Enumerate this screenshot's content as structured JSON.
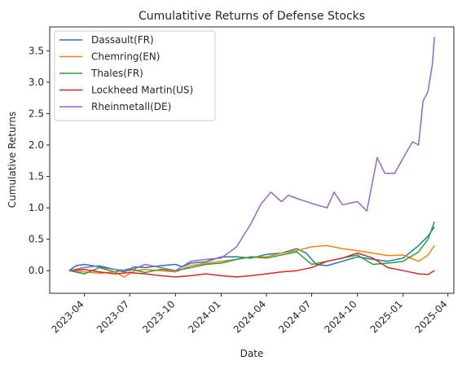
{
  "chart_data": {
    "type": "line",
    "title": "Cumulatitive Returns of Defense Stocks",
    "xlabel": "Date",
    "ylabel": "Cumulative Returns",
    "xlim": [
      "2023-01-21",
      "2025-04-13"
    ],
    "ylim": [
      -0.36,
      3.88
    ],
    "x_ticks": [
      "2023-04",
      "2023-07",
      "2023-10",
      "2024-01",
      "2024-04",
      "2024-07",
      "2024-10",
      "2025-01",
      "2025-04"
    ],
    "y_ticks": [
      "0.0",
      "0.5",
      "1.0",
      "1.5",
      "2.0",
      "2.5",
      "3.0",
      "3.5"
    ],
    "legend_position": "upper-left",
    "grid": false,
    "series": [
      {
        "name": "Dassault(FR)",
        "color": "#1f77b4",
        "points": [
          [
            "2023-03-01",
            0.0
          ],
          [
            "2023-03-15",
            0.08
          ],
          [
            "2023-04-01",
            0.1
          ],
          [
            "2023-05-01",
            0.06
          ],
          [
            "2023-06-01",
            0.02
          ],
          [
            "2023-06-20",
            -0.02
          ],
          [
            "2023-07-10",
            0.06
          ],
          [
            "2023-08-01",
            0.05
          ],
          [
            "2023-09-01",
            0.08
          ],
          [
            "2023-10-01",
            0.1
          ],
          [
            "2023-10-15",
            0.06
          ],
          [
            "2023-11-01",
            0.12
          ],
          [
            "2023-12-01",
            0.14
          ],
          [
            "2024-01-01",
            0.22
          ],
          [
            "2024-02-01",
            0.22
          ],
          [
            "2024-03-01",
            0.2
          ],
          [
            "2024-04-01",
            0.26
          ],
          [
            "2024-05-01",
            0.28
          ],
          [
            "2024-06-01",
            0.35
          ],
          [
            "2024-06-20",
            0.28
          ],
          [
            "2024-07-10",
            0.1
          ],
          [
            "2024-08-01",
            0.08
          ],
          [
            "2024-09-01",
            0.15
          ],
          [
            "2024-10-01",
            0.22
          ],
          [
            "2024-11-01",
            0.18
          ],
          [
            "2024-12-01",
            0.15
          ],
          [
            "2025-01-01",
            0.2
          ],
          [
            "2025-02-01",
            0.4
          ],
          [
            "2025-02-20",
            0.55
          ],
          [
            "2025-03-05",
            0.7
          ]
        ]
      },
      {
        "name": "Chemring(EN)",
        "color": "#ff7f0e",
        "points": [
          [
            "2023-03-01",
            0.0
          ],
          [
            "2023-04-01",
            -0.02
          ],
          [
            "2023-05-01",
            -0.04
          ],
          [
            "2023-06-01",
            -0.02
          ],
          [
            "2023-06-20",
            -0.1
          ],
          [
            "2023-07-10",
            0.0
          ],
          [
            "2023-08-01",
            0.02
          ],
          [
            "2023-09-01",
            0.0
          ],
          [
            "2023-10-01",
            -0.02
          ],
          [
            "2023-11-01",
            0.08
          ],
          [
            "2023-12-01",
            0.12
          ],
          [
            "2024-01-01",
            0.15
          ],
          [
            "2024-02-01",
            0.18
          ],
          [
            "2024-03-01",
            0.22
          ],
          [
            "2024-04-01",
            0.22
          ],
          [
            "2024-05-01",
            0.28
          ],
          [
            "2024-06-01",
            0.32
          ],
          [
            "2024-07-01",
            0.38
          ],
          [
            "2024-08-01",
            0.4
          ],
          [
            "2024-09-01",
            0.35
          ],
          [
            "2024-10-01",
            0.32
          ],
          [
            "2024-11-01",
            0.28
          ],
          [
            "2024-12-01",
            0.24
          ],
          [
            "2025-01-01",
            0.25
          ],
          [
            "2025-02-01",
            0.15
          ],
          [
            "2025-02-20",
            0.25
          ],
          [
            "2025-03-05",
            0.4
          ]
        ]
      },
      {
        "name": "Thales(FR)",
        "color": "#2ca02c",
        "points": [
          [
            "2023-03-01",
            0.0
          ],
          [
            "2023-04-01",
            -0.05
          ],
          [
            "2023-05-01",
            0.05
          ],
          [
            "2023-06-01",
            -0.02
          ],
          [
            "2023-07-01",
            0.03
          ],
          [
            "2023-08-01",
            -0.03
          ],
          [
            "2023-09-01",
            0.02
          ],
          [
            "2023-10-01",
            0.0
          ],
          [
            "2023-11-01",
            0.05
          ],
          [
            "2023-12-01",
            0.1
          ],
          [
            "2024-01-01",
            0.12
          ],
          [
            "2024-02-01",
            0.18
          ],
          [
            "2024-03-01",
            0.22
          ],
          [
            "2024-04-01",
            0.2
          ],
          [
            "2024-05-01",
            0.25
          ],
          [
            "2024-06-01",
            0.3
          ],
          [
            "2024-07-01",
            0.1
          ],
          [
            "2024-08-01",
            0.15
          ],
          [
            "2024-09-01",
            0.2
          ],
          [
            "2024-10-01",
            0.25
          ],
          [
            "2024-11-01",
            0.1
          ],
          [
            "2024-12-01",
            0.12
          ],
          [
            "2025-01-01",
            0.15
          ],
          [
            "2025-02-01",
            0.3
          ],
          [
            "2025-02-20",
            0.5
          ],
          [
            "2025-03-05",
            0.78
          ]
        ]
      },
      {
        "name": "Lockheed Martin(US)",
        "color": "#d62728",
        "points": [
          [
            "2023-03-01",
            0.0
          ],
          [
            "2023-04-01",
            0.02
          ],
          [
            "2023-05-01",
            -0.02
          ],
          [
            "2023-06-01",
            -0.05
          ],
          [
            "2023-07-01",
            -0.03
          ],
          [
            "2023-08-01",
            -0.05
          ],
          [
            "2023-09-01",
            -0.08
          ],
          [
            "2023-10-01",
            -0.1
          ],
          [
            "2023-11-01",
            -0.08
          ],
          [
            "2023-12-01",
            -0.05
          ],
          [
            "2024-01-01",
            -0.08
          ],
          [
            "2024-02-01",
            -0.1
          ],
          [
            "2024-03-01",
            -0.08
          ],
          [
            "2024-04-01",
            -0.05
          ],
          [
            "2024-05-01",
            -0.02
          ],
          [
            "2024-06-01",
            0.0
          ],
          [
            "2024-07-01",
            0.05
          ],
          [
            "2024-08-01",
            0.15
          ],
          [
            "2024-09-01",
            0.2
          ],
          [
            "2024-10-01",
            0.28
          ],
          [
            "2024-11-01",
            0.2
          ],
          [
            "2024-12-01",
            0.05
          ],
          [
            "2025-01-01",
            0.0
          ],
          [
            "2025-02-01",
            -0.05
          ],
          [
            "2025-02-20",
            -0.06
          ],
          [
            "2025-03-05",
            0.0
          ]
        ]
      },
      {
        "name": "Rheinmetall(DE)",
        "color": "#9467bd",
        "points": [
          [
            "2023-03-01",
            0.0
          ],
          [
            "2023-04-01",
            0.05
          ],
          [
            "2023-05-01",
            0.08
          ],
          [
            "2023-06-01",
            0.02
          ],
          [
            "2023-07-01",
            0.0
          ],
          [
            "2023-08-01",
            0.1
          ],
          [
            "2023-09-01",
            0.05
          ],
          [
            "2023-10-01",
            0.0
          ],
          [
            "2023-11-01",
            0.15
          ],
          [
            "2023-12-01",
            0.18
          ],
          [
            "2024-01-01",
            0.2
          ],
          [
            "2024-02-01",
            0.38
          ],
          [
            "2024-03-01",
            0.75
          ],
          [
            "2024-03-20",
            1.05
          ],
          [
            "2024-04-10",
            1.25
          ],
          [
            "2024-05-01",
            1.1
          ],
          [
            "2024-05-15",
            1.2
          ],
          [
            "2024-06-01",
            1.15
          ],
          [
            "2024-06-20",
            1.1
          ],
          [
            "2024-07-10",
            1.05
          ],
          [
            "2024-08-01",
            1.0
          ],
          [
            "2024-08-15",
            1.25
          ],
          [
            "2024-09-01",
            1.05
          ],
          [
            "2024-10-01",
            1.1
          ],
          [
            "2024-10-20",
            0.95
          ],
          [
            "2024-11-10",
            1.8
          ],
          [
            "2024-11-25",
            1.55
          ],
          [
            "2024-12-15",
            1.55
          ],
          [
            "2025-01-05",
            1.85
          ],
          [
            "2025-01-20",
            2.05
          ],
          [
            "2025-02-01",
            2.0
          ],
          [
            "2025-02-10",
            2.7
          ],
          [
            "2025-02-20",
            2.85
          ],
          [
            "2025-03-01",
            3.3
          ],
          [
            "2025-03-05",
            3.72
          ]
        ]
      }
    ]
  }
}
